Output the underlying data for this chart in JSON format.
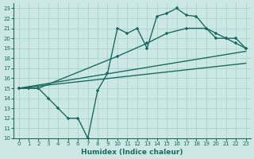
{
  "xlabel": "Humidex (Indice chaleur)",
  "bg_color": "#cce8e4",
  "grid_color": "#aad4cc",
  "line_color": "#1a6b5e",
  "xlim": [
    -0.5,
    23.5
  ],
  "ylim": [
    10,
    23.5
  ],
  "yticks": [
    10,
    11,
    12,
    13,
    14,
    15,
    16,
    17,
    18,
    19,
    20,
    21,
    22,
    23
  ],
  "xticks": [
    0,
    1,
    2,
    3,
    4,
    5,
    6,
    7,
    8,
    9,
    10,
    11,
    12,
    13,
    14,
    15,
    16,
    17,
    18,
    19,
    20,
    21,
    22,
    23
  ],
  "line_jagged_x": [
    0,
    1,
    2,
    3,
    4,
    5,
    6,
    7,
    8,
    9,
    10,
    11,
    12,
    13,
    14,
    15,
    16,
    17,
    18,
    19,
    20,
    21,
    22,
    23
  ],
  "line_jagged_y": [
    15,
    15,
    15,
    14,
    13,
    12,
    12,
    10,
    14.8,
    16.5,
    21.0,
    20.5,
    21.0,
    19.0,
    22.2,
    22.5,
    23.0,
    22.3,
    22.2,
    21.0,
    20.0,
    20.0,
    20.0,
    19.0
  ],
  "line_smooth_x": [
    0,
    2,
    10,
    13,
    15,
    17,
    19,
    20,
    21,
    22,
    23
  ],
  "line_smooth_y": [
    15,
    15,
    18.2,
    19.5,
    20.5,
    21.0,
    21.0,
    20.5,
    20.0,
    19.5,
    19.0
  ],
  "trend1_x": [
    0,
    23
  ],
  "trend1_y": [
    15,
    18.7
  ],
  "trend2_x": [
    0,
    23
  ],
  "trend2_y": [
    15,
    17.5
  ]
}
